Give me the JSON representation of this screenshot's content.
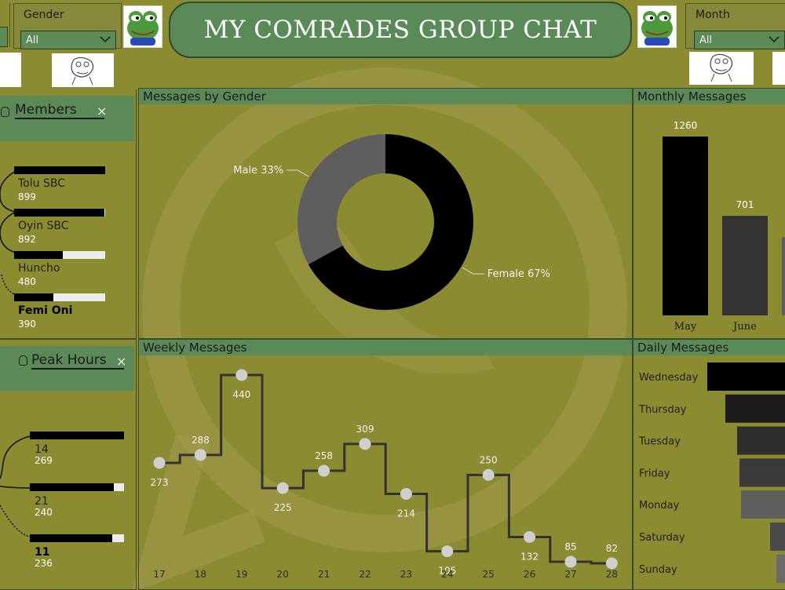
{
  "title": "MY COMRADES GROUP CHAT",
  "slicers": {
    "gender": {
      "label": "Gender",
      "value": "All"
    },
    "month": {
      "label": "Month",
      "value": "All"
    }
  },
  "members_card": {
    "title": "Members",
    "close": "×",
    "items": [
      {
        "name": "Tolu SBC",
        "count": "899",
        "value": 899,
        "bold": false
      },
      {
        "name": "Oyin SBC",
        "count": "892",
        "value": 892,
        "bold": false
      },
      {
        "name": "Huncho",
        "count": "480",
        "value": 480,
        "bold": false
      },
      {
        "name": "Femi Oni",
        "count": "390",
        "value": 390,
        "bold": true
      }
    ]
  },
  "peak_card": {
    "title": "Peak Hours",
    "close": "×",
    "items": [
      {
        "name": "14",
        "count": "269",
        "value": 269,
        "bold": false
      },
      {
        "name": "21",
        "count": "240",
        "value": 240,
        "bold": false
      },
      {
        "name": "11",
        "count": "236",
        "value": 236,
        "bold": true
      }
    ]
  },
  "panels": {
    "gender": "Messages by Gender",
    "monthly": "Monthly Messages",
    "weekly": "Weekly Messages",
    "daily": "Daily Messages"
  },
  "chart_data": [
    {
      "type": "pie",
      "title": "Messages by Gender",
      "categories": [
        "Female",
        "Male"
      ],
      "values": [
        67,
        33
      ],
      "labels": [
        "Female 67%",
        "Male 33%"
      ],
      "colors": [
        "#000000",
        "#5e5e5e"
      ]
    },
    {
      "type": "bar",
      "title": "Monthly Messages",
      "categories": [
        "May",
        "June"
      ],
      "values": [
        1260,
        701
      ],
      "colors": [
        "#000000",
        "#333333"
      ]
    },
    {
      "type": "line",
      "title": "Weekly Messages",
      "x": [
        "17",
        "18",
        "19",
        "20",
        "21",
        "22",
        "23",
        "24",
        "25",
        "26",
        "27",
        "28"
      ],
      "values": [
        273,
        288,
        440,
        225,
        258,
        309,
        214,
        105,
        250,
        132,
        85,
        82
      ],
      "step": true
    },
    {
      "type": "bar",
      "title": "Daily Messages",
      "orientation": "horizontal",
      "categories": [
        "Wednesday",
        "Thursday",
        "Tuesday",
        "Friday",
        "Monday",
        "Saturday",
        "Sunday"
      ],
      "colors": [
        "#000000",
        "#1c1c1c",
        "#2e2e2e",
        "#3a3a3a",
        "#5e5e5e",
        "#4a4a4a",
        "#6a6a6a"
      ]
    }
  ]
}
